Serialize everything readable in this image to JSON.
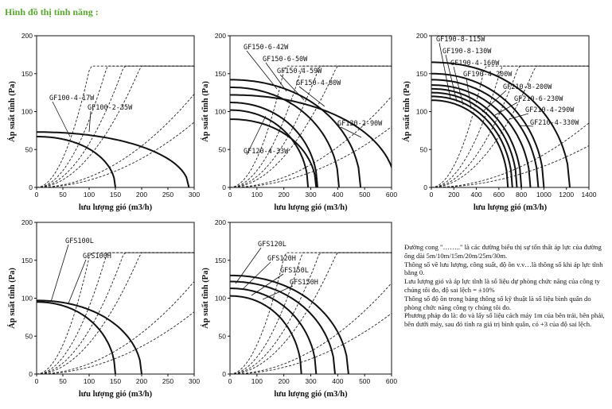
{
  "heading": "Hình đồ thị tính năng :",
  "xlabel": "lưu lượng gió (m3/h)",
  "ylabel": "Áp suất tĩnh (Pa)",
  "note": [
    "Đường cong \"……..\" là các đường biểu thị sự tổn thất áp lực của đường ống dài 5m/10m/15m/20m/25m/30m.",
    "Thông số về lưu lượng, công suất, độ ồn v.v…là thông số khi áp lực tĩnh bằng 0.",
    "Lưu lượng gió và áp lực tĩnh là số liệu dự phòng chức năng của công ty chúng tôi đo, độ sai lệch = ±10%",
    "Thông số độ ồn trong bảng thông số kỹ thuật là số liệu bình quân do phòng chức năng công ty chúng tôi đo.",
    "Phương pháp đo là: đo và lấy số liệu cách máy 1m của bên trái, bên phải, bên dưới máy, sau đó tính ra giá trị bình quân, có +3 của độ sai lệch."
  ],
  "chart_data": [
    {
      "type": "line",
      "title": "",
      "xlabel": "lưu lượng gió (m3/h)",
      "ylabel": "Áp suất tĩnh (Pa)",
      "xlim": [
        0,
        300
      ],
      "ylim": [
        0,
        200
      ],
      "xticks": [
        0,
        50,
        100,
        150,
        200,
        250,
        300
      ],
      "yticks": [
        0,
        50,
        100,
        150,
        200
      ],
      "series": [
        {
          "name": "GF100-4-17W",
          "max_pressure": 67,
          "max_flow": 150
        },
        {
          "name": "GF100-2-35W",
          "max_pressure": 73,
          "max_flow": 290
        }
      ],
      "duct_loss_curves": {
        "count": 6,
        "y_at_300": [
          160,
          160,
          160,
          160,
          123,
          86
        ]
      }
    },
    {
      "type": "line",
      "title": "",
      "xlabel": "lưu lượng gió (m3/h)",
      "ylabel": "Áp suất tĩnh (Pa)",
      "xlim": [
        0,
        600
      ],
      "ylim": [
        0,
        200
      ],
      "xticks": [
        0,
        100,
        200,
        300,
        400,
        500,
        600
      ],
      "yticks": [
        0,
        50,
        100,
        150,
        200
      ],
      "series": [
        {
          "name": "GF150-6-42W",
          "max_pressure": 102,
          "max_flow": 290
        },
        {
          "name": "GF150-6-50W",
          "max_pressure": 112,
          "max_flow": 325
        },
        {
          "name": "GF150-4-59W",
          "max_pressure": 132,
          "max_flow": 405
        },
        {
          "name": "GF150-4-80W",
          "max_pressure": 142,
          "max_flow": 485
        },
        {
          "name": "GF120-2-90W",
          "max_pressure": 122,
          "max_flow": 615
        },
        {
          "name": "GF120-4-33W",
          "max_pressure": 90,
          "max_flow": 320
        }
      ],
      "duct_loss_curves": {
        "count": 6,
        "y_at_600": [
          160,
          160,
          160,
          160,
          120,
          80
        ]
      }
    },
    {
      "type": "line",
      "title": "",
      "xlabel": "lưu lượng gió (m3/h)",
      "ylabel": "Áp suất tĩnh (Pa)",
      "xlim": [
        0,
        1400
      ],
      "ylim": [
        0,
        200
      ],
      "xticks": [
        0,
        200,
        400,
        600,
        800,
        1000,
        1200,
        1400
      ],
      "yticks": [
        0,
        50,
        100,
        150,
        200
      ],
      "series": [
        {
          "name": "GF190-8-115W",
          "max_pressure": 115,
          "max_flow": 680
        },
        {
          "name": "GF190-8-130W",
          "max_pressure": 120,
          "max_flow": 720
        },
        {
          "name": "GF190-4-160W",
          "max_pressure": 125,
          "max_flow": 760
        },
        {
          "name": "GF190-4-200W",
          "max_pressure": 130,
          "max_flow": 800
        },
        {
          "name": "GF210-8-200W",
          "max_pressure": 135,
          "max_flow": 880
        },
        {
          "name": "GF210-6-230W",
          "max_pressure": 142,
          "max_flow": 950
        },
        {
          "name": "GF210-4-290W",
          "max_pressure": 150,
          "max_flow": 1000
        },
        {
          "name": "GF210-4-330W",
          "max_pressure": 165,
          "max_flow": 1230
        }
      ],
      "duct_loss_curves": {
        "count": 6,
        "y_at_1400": [
          135,
          135,
          135,
          120,
          85,
          55
        ]
      }
    },
    {
      "type": "line",
      "title": "",
      "xlabel": "lưu lượng gió (m3/h)",
      "ylabel": "Áp suất tĩnh (Pa)",
      "xlim": [
        0,
        300
      ],
      "ylim": [
        0,
        200
      ],
      "xticks": [
        0,
        50,
        100,
        150,
        200,
        250,
        300
      ],
      "yticks": [
        0,
        50,
        100,
        150,
        200
      ],
      "series": [
        {
          "name": "GFS100L",
          "max_pressure": 95,
          "max_flow": 150
        },
        {
          "name": "GFS100H",
          "max_pressure": 97,
          "max_flow": 200
        }
      ],
      "duct_loss_curves": {
        "count": 6,
        "y_at_300": [
          160,
          160,
          160,
          160,
          122,
          82
        ]
      }
    },
    {
      "type": "line",
      "title": "",
      "xlabel": "lưu lượng gió (m3/h)",
      "ylabel": "Áp suất tĩnh (Pa)",
      "xlim": [
        0,
        600
      ],
      "ylim": [
        0,
        200
      ],
      "xticks": [
        0,
        100,
        200,
        300,
        400,
        500,
        600
      ],
      "yticks": [
        0,
        50,
        100,
        150,
        200
      ],
      "series": [
        {
          "name": "GFS120L",
          "max_pressure": 103,
          "max_flow": 265
        },
        {
          "name": "GFS120H",
          "max_pressure": 113,
          "max_flow": 320
        },
        {
          "name": "GFS150L",
          "max_pressure": 122,
          "max_flow": 390
        },
        {
          "name": "GFS150H",
          "max_pressure": 130,
          "max_flow": 440
        }
      ],
      "duct_loss_curves": {
        "count": 6,
        "y_at_600": [
          160,
          160,
          160,
          160,
          120,
          80
        ]
      }
    }
  ]
}
